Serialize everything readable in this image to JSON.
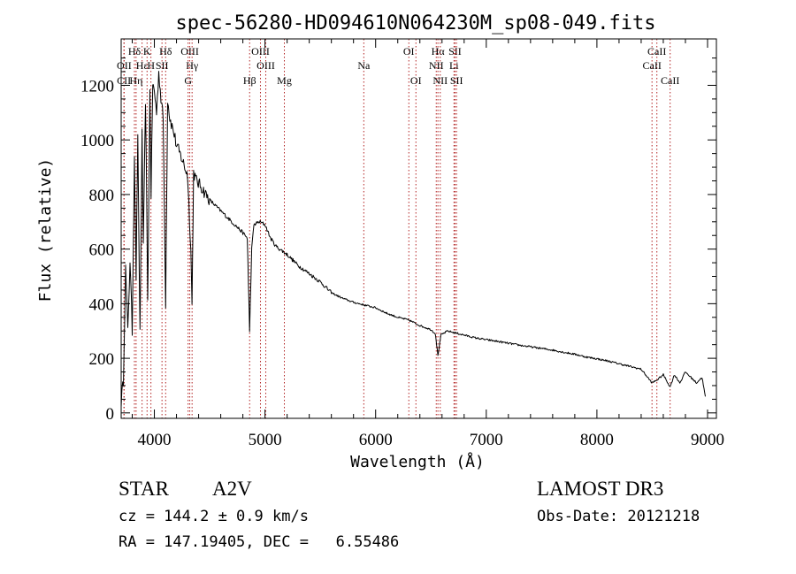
{
  "chart_data": {
    "type": "line",
    "title": "spec-56280-HD094610N064230M_sp08-049.fits",
    "xlabel": "Wavelength (Å)",
    "ylabel": "Flux (relative)",
    "xlim": [
      3700,
      9080
    ],
    "ylim": [
      -20,
      1370
    ],
    "xticks": [
      4000,
      5000,
      6000,
      7000,
      8000,
      9000
    ],
    "yticks": [
      0,
      200,
      400,
      600,
      800,
      1000,
      1200
    ],
    "line_color": "#000000",
    "marker_color": "#b22222",
    "series": [
      {
        "name": "spectrum",
        "x": [
          3700,
          3720,
          3740,
          3760,
          3780,
          3800,
          3820,
          3835,
          3850,
          3870,
          3889,
          3900,
          3920,
          3940,
          3960,
          3970,
          3985,
          4000,
          4020,
          4040,
          4060,
          4080,
          4102,
          4120,
          4140,
          4160,
          4180,
          4200,
          4250,
          4300,
          4330,
          4340,
          4355,
          4380,
          4420,
          4450,
          4500,
          4550,
          4600,
          4650,
          4700,
          4750,
          4800,
          4840,
          4861,
          4880,
          4900,
          4950,
          5000,
          5050,
          5100,
          5200,
          5300,
          5400,
          5500,
          5600,
          5700,
          5800,
          5900,
          6000,
          6100,
          6200,
          6300,
          6400,
          6500,
          6540,
          6563,
          6590,
          6650,
          6700,
          6800,
          6900,
          7000,
          7100,
          7200,
          7300,
          7400,
          7500,
          7600,
          7700,
          7800,
          7900,
          8000,
          8100,
          8200,
          8300,
          8400,
          8498,
          8542,
          8600,
          8662,
          8700,
          8750,
          8800,
          8850,
          8900,
          8950,
          8980
        ],
        "y": [
          40,
          120,
          530,
          300,
          560,
          300,
          950,
          500,
          1000,
          300,
          1020,
          600,
          1150,
          420,
          1180,
          800,
          1200,
          1180,
          1100,
          1250,
          1150,
          1080,
          400,
          1150,
          1080,
          1050,
          1020,
          980,
          930,
          870,
          600,
          400,
          880,
          850,
          830,
          810,
          780,
          760,
          740,
          720,
          700,
          680,
          660,
          640,
          300,
          600,
          690,
          700,
          690,
          640,
          610,
          580,
          540,
          510,
          480,
          440,
          420,
          405,
          395,
          385,
          365,
          350,
          340,
          320,
          305,
          290,
          210,
          285,
          300,
          295,
          285,
          275,
          268,
          262,
          255,
          248,
          242,
          236,
          230,
          222,
          215,
          205,
          198,
          190,
          180,
          170,
          160,
          110,
          120,
          140,
          95,
          140,
          110,
          150,
          130,
          110,
          130,
          60
        ]
      }
    ],
    "lines": [
      {
        "label": "Hδ",
        "x": 3820,
        "row": 1
      },
      {
        "label": "OII",
        "x": 3727,
        "row": 2
      },
      {
        "label": "CII",
        "x": 3725,
        "row": 3
      },
      {
        "label": "Hε",
        "x": 3889,
        "row": 2
      },
      {
        "label": "Hη",
        "x": 3835,
        "row": 3
      },
      {
        "label": "K",
        "x": 3934,
        "row": 1
      },
      {
        "label": "H",
        "x": 3969,
        "row": 2
      },
      {
        "label": "Hδ",
        "x": 4102,
        "row": 1
      },
      {
        "label": "SII",
        "x": 4069,
        "row": 2
      },
      {
        "label": "OIII",
        "x": 4320,
        "row": 1
      },
      {
        "label": "Hγ",
        "x": 4341,
        "row": 2
      },
      {
        "label": "G",
        "x": 4305,
        "row": 3
      },
      {
        "label": "Hβ",
        "x": 4861,
        "row": 3
      },
      {
        "label": "OIII",
        "x": 4959,
        "row": 1
      },
      {
        "label": "OIII",
        "x": 5007,
        "row": 2
      },
      {
        "label": "Mg",
        "x": 5175,
        "row": 3
      },
      {
        "label": "Na",
        "x": 5893,
        "row": 2
      },
      {
        "label": "OI",
        "x": 6300,
        "row": 1
      },
      {
        "label": "OI",
        "x": 6364,
        "row": 3
      },
      {
        "label": "Hα",
        "x": 6563,
        "row": 1
      },
      {
        "label": "NII",
        "x": 6548,
        "row": 2
      },
      {
        "label": "NII",
        "x": 6584,
        "row": 3
      },
      {
        "label": "SII",
        "x": 6717,
        "row": 1
      },
      {
        "label": "Li",
        "x": 6708,
        "row": 2
      },
      {
        "label": "SII",
        "x": 6731,
        "row": 3
      },
      {
        "label": "CaII",
        "x": 8542,
        "row": 1
      },
      {
        "label": "CaII",
        "x": 8498,
        "row": 2
      },
      {
        "label": "CaII",
        "x": 8662,
        "row": 3
      }
    ]
  },
  "info": {
    "class": "STAR",
    "subclass": "A2V",
    "survey": "LAMOST DR3",
    "cz": "cz = 144.2 ± 0.9 km/s",
    "obs_date": "Obs-Date: 20121218",
    "radec": "RA = 147.19405, DEC =   6.55486"
  }
}
